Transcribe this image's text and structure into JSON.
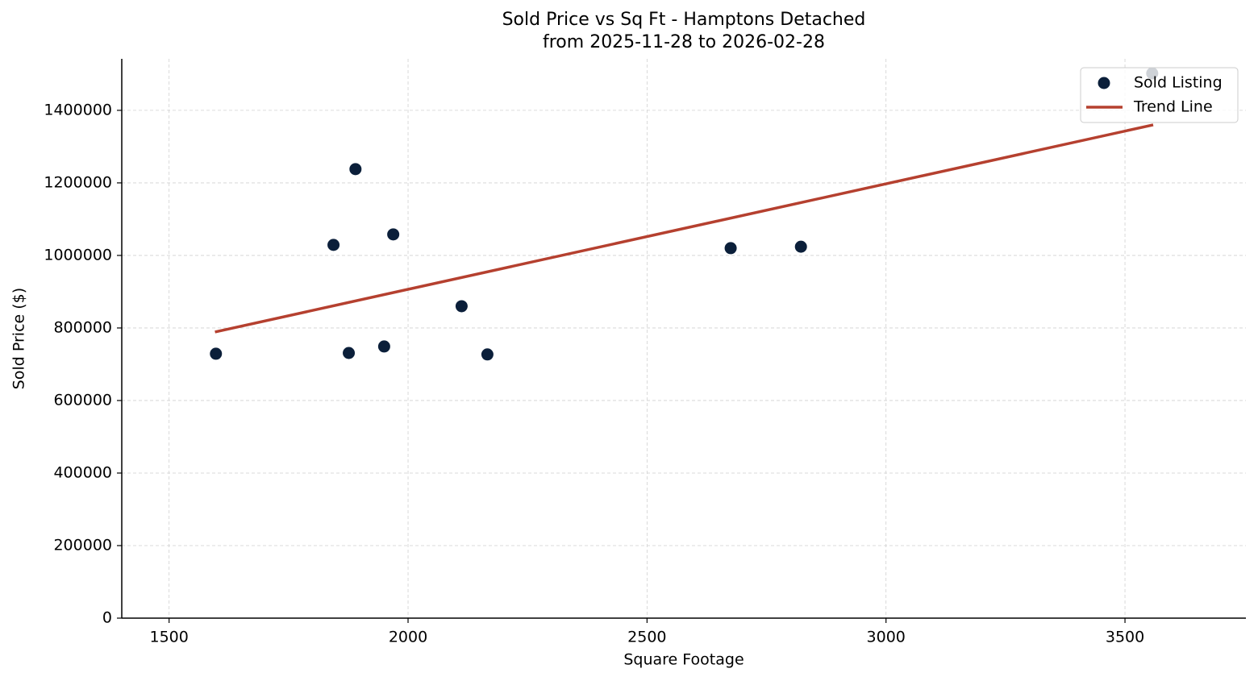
{
  "chart_data": {
    "type": "scatter",
    "title": "Sold Price vs Sq Ft - Hamptons Detached",
    "subtitle": "from 2025-11-28 to 2026-02-28",
    "x_label": "Square Footage",
    "y_label": "Sold Price ($)",
    "xlim": [
      1401,
      3753
    ],
    "ylim": [
      0,
      1542000
    ],
    "xticks": [
      1500,
      2000,
      2500,
      3000,
      3500
    ],
    "yticks": [
      0,
      200000,
      400000,
      600000,
      800000,
      1000000,
      1200000,
      1400000
    ],
    "grid": true,
    "legend": "upper right",
    "series": [
      {
        "name": "Sold Listing",
        "style": "marker",
        "color": "#0b1f3a",
        "x": [
          1598,
          1844,
          1890,
          1876,
          1950,
          1969,
          2112,
          2166,
          2675,
          2822,
          3557
        ],
        "values": [
          729000,
          1029000,
          1238000,
          731000,
          749000,
          1058000,
          860000,
          727000,
          1020000,
          1024000,
          1502000
        ]
      },
      {
        "name": "Trend Line",
        "style": "line",
        "color": "#b5402f",
        "x": [
          1596,
          3559
        ],
        "values": [
          789000,
          1360000
        ]
      }
    ]
  }
}
